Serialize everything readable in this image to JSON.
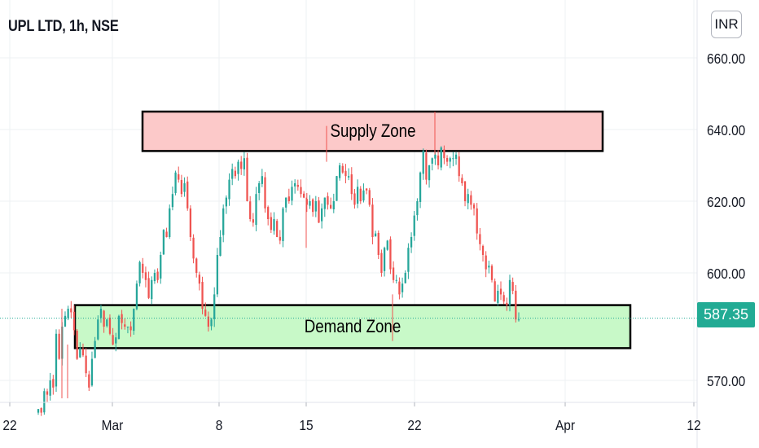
{
  "header": {
    "title": "UPL LTD, 1h, NSE",
    "currency": "INR"
  },
  "chart_data": {
    "type": "candlestick",
    "title": "UPL LTD, 1h, NSE",
    "y_axis": {
      "ticks": [
        570,
        600,
        620,
        640,
        660
      ],
      "tick_labels": [
        "570.00",
        "600.00",
        "620.00",
        "640.00",
        "660.00"
      ],
      "range": [
        565,
        676
      ]
    },
    "x_axis": {
      "tick_labels": [
        "22",
        "Mar",
        "8",
        "15",
        "22",
        "Apr",
        "12"
      ]
    },
    "last_price": 587.35,
    "last_price_label": "587.35",
    "zones": [
      {
        "label": "Supply Zone",
        "top": 645,
        "bottom": 634,
        "color": "#fcc9c9",
        "border": "#000000"
      },
      {
        "label": "Demand Zone",
        "top": 591,
        "bottom": 579,
        "color": "#c8f9c8",
        "border": "#000000"
      }
    ],
    "up_color": "#26a69a",
    "down_color": "#ef5350",
    "candles_close": [
      562,
      561,
      567,
      566,
      570,
      568,
      583,
      576,
      585,
      588,
      590,
      589,
      584,
      576,
      579,
      577,
      572,
      568,
      576,
      581,
      587,
      590,
      585,
      587,
      583,
      580,
      582,
      588,
      586,
      585,
      585,
      584,
      590,
      597,
      603,
      600,
      598,
      593,
      598,
      600,
      598,
      605,
      612,
      610,
      618,
      622,
      628,
      626,
      622,
      625,
      618,
      610,
      604,
      600,
      597,
      590,
      588,
      585,
      587,
      594,
      605,
      610,
      618,
      621,
      626,
      629,
      627,
      631,
      629,
      632,
      620,
      615,
      614,
      622,
      625,
      627,
      618,
      615,
      612,
      615,
      610,
      609,
      618,
      621,
      620,
      624,
      625,
      624,
      622,
      621,
      619,
      620,
      617,
      620,
      614,
      618,
      621,
      619,
      618,
      620,
      627,
      630,
      628,
      627,
      627,
      622,
      619,
      624,
      620,
      623,
      623,
      619,
      610,
      611,
      605,
      600,
      607,
      609,
      601,
      598,
      598,
      594,
      597,
      600,
      607,
      610,
      616,
      620,
      628,
      634,
      626,
      630,
      632,
      633,
      630,
      635,
      632,
      631,
      632,
      632,
      633,
      627,
      625,
      620,
      622,
      619,
      618,
      611,
      608,
      605,
      601,
      602,
      598,
      592,
      595,
      594,
      592,
      591,
      598,
      595,
      587,
      587
    ]
  }
}
